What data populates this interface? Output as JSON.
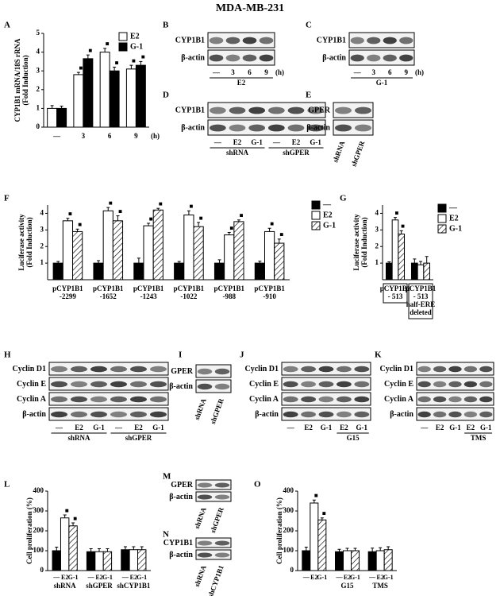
{
  "title": "MDA-MB-231",
  "chart_data": [
    {
      "type": "bar",
      "label": "A",
      "ylabel": [
        "CYP1B1 mRNA/18S rRNA",
        "(Fold Induction)"
      ],
      "xlabel": "(h)",
      "categories": [
        "—",
        "3",
        "6",
        "9"
      ],
      "series": [
        {
          "name": "E2",
          "color": "#ffffff",
          "values": [
            1,
            2.8,
            4,
            3.1
          ],
          "errors": [
            0.15,
            0.12,
            0.2,
            0.2
          ],
          "marks": [
            null,
            "■",
            "■",
            "■"
          ]
        },
        {
          "name": "G-1",
          "color": "#000000",
          "values": [
            1,
            3.65,
            3.0,
            3.3
          ],
          "errors": [
            0.12,
            0.2,
            0.2,
            0.2
          ],
          "marks": [
            null,
            "■",
            "■",
            "■"
          ]
        }
      ],
      "ylim": [
        0,
        5
      ],
      "yticks": [
        0,
        1,
        2,
        3,
        4,
        5
      ],
      "legend": "upper right"
    },
    {
      "type": "bar",
      "label": "F",
      "ylabel": [
        "Luciferase activity",
        "(Fold Induction)"
      ],
      "categories": [
        [
          "pCYP1B1",
          "-2299"
        ],
        [
          "pCYP1B1",
          "-1652"
        ],
        [
          "pCYP1B1",
          "-1243"
        ],
        [
          "pCYP1B1",
          "-1022"
        ],
        [
          "pCYP1B1",
          "-988"
        ],
        [
          "pCYP1B1",
          "-910"
        ]
      ],
      "series": [
        {
          "name": "—",
          "color": "#000000",
          "values": [
            1,
            1,
            1,
            1,
            1,
            1
          ],
          "errors": [
            0.1,
            0.15,
            0.3,
            0.1,
            0.2,
            0.12
          ]
        },
        {
          "name": "E2",
          "color": "#ffffff",
          "values": [
            3.55,
            4.15,
            3.25,
            3.9,
            2.7,
            2.9
          ],
          "errors": [
            0.15,
            0.2,
            0.15,
            0.25,
            0.15,
            0.2
          ],
          "marks": [
            "■",
            "■",
            "■",
            "■",
            "■",
            "■"
          ]
        },
        {
          "name": "G-1",
          "color": "#ffffff",
          "pattern": "hatch",
          "values": [
            2.9,
            3.55,
            4.2,
            3.2,
            3.5,
            2.2
          ],
          "errors": [
            0.15,
            0.3,
            0.1,
            0.25,
            0.1,
            0.25
          ],
          "marks": [
            "■",
            "■",
            "■",
            "■",
            "■",
            "■"
          ]
        }
      ],
      "ylim": [
        0,
        4.5
      ],
      "yticks": [
        1,
        2,
        3,
        4
      ],
      "legend": "right"
    },
    {
      "type": "bar",
      "label": "G",
      "ylabel": [
        "Luciferase activity",
        "(Fold Induction)"
      ],
      "category_boxes": true,
      "categories": [
        [
          "pCYP1B1",
          "- 513"
        ],
        [
          "pCYP1B1",
          "- 513",
          "half-ERE",
          "deleted"
        ]
      ],
      "series": [
        {
          "name": "—",
          "color": "#000000",
          "values": [
            1,
            1
          ],
          "errors": [
            0.08,
            0.25
          ]
        },
        {
          "name": "E2",
          "color": "#ffffff",
          "values": [
            3.6,
            0.9
          ],
          "errors": [
            0.15,
            0.2
          ],
          "marks": [
            "■",
            null
          ]
        },
        {
          "name": "G-1",
          "color": "#ffffff",
          "pattern": "hatch",
          "values": [
            2.75,
            1.0
          ],
          "errors": [
            0.2,
            0.4
          ],
          "marks": [
            "■",
            null
          ]
        }
      ],
      "ylim": [
        0,
        4.5
      ],
      "yticks": [
        1,
        2,
        3,
        4
      ],
      "legend": "right"
    },
    {
      "type": "bar",
      "label": "L",
      "ylabel": [
        "Cell proliferation (%)"
      ],
      "series_under_bars": true,
      "categories": [
        "shRNA",
        "shGPER",
        "shCYP1B1"
      ],
      "series": [
        {
          "name": "—",
          "color": "#000000",
          "values": [
            100,
            95,
            105
          ],
          "errors": [
            18,
            15,
            15
          ]
        },
        {
          "name": "E2",
          "color": "#ffffff",
          "values": [
            265,
            95,
            105
          ],
          "errors": [
            15,
            15,
            15
          ],
          "marks": [
            "■",
            null,
            null
          ]
        },
        {
          "name": "G-1",
          "color": "#ffffff",
          "pattern": "hatch",
          "values": [
            225,
            95,
            105
          ],
          "errors": [
            15,
            15,
            15
          ],
          "marks": [
            "■",
            null,
            null
          ]
        }
      ],
      "ylim": [
        0,
        400
      ],
      "yticks": [
        0,
        100,
        200,
        300,
        400
      ]
    },
    {
      "type": "bar",
      "label": "O",
      "ylabel": [
        "Cell proliferation (%)"
      ],
      "series_under_bars": true,
      "categories": [
        null,
        "G15",
        "TMS"
      ],
      "series": [
        {
          "name": "—",
          "color": "#000000",
          "values": [
            100,
            95,
            95
          ],
          "errors": [
            18,
            12,
            18
          ]
        },
        {
          "name": "E2",
          "color": "#ffffff",
          "values": [
            340,
            100,
            100
          ],
          "errors": [
            15,
            12,
            15
          ],
          "marks": [
            "■",
            null,
            null
          ]
        },
        {
          "name": "G-1",
          "color": "#ffffff",
          "pattern": "hatch",
          "values": [
            255,
            100,
            105
          ],
          "errors": [
            10,
            12,
            15
          ],
          "marks": [
            "■",
            null,
            null
          ]
        }
      ],
      "ylim": [
        0,
        400
      ],
      "yticks": [
        0,
        100,
        200,
        300,
        400
      ]
    }
  ],
  "blots": [
    {
      "label": "B",
      "rows": [
        "CYP1B1",
        "β-actin"
      ],
      "lanes": [
        "—",
        "3",
        "6",
        "9"
      ],
      "unit": "(h)",
      "groups": [
        "E2"
      ]
    },
    {
      "label": "C",
      "rows": [
        "CYP1B1",
        "β-actin"
      ],
      "lanes": [
        "—",
        "3",
        "6",
        "9"
      ],
      "unit": "(h)",
      "groups": [
        "G-1"
      ]
    },
    {
      "label": "D",
      "rows": [
        "CYP1B1",
        "β-actin"
      ],
      "lanes": [
        "—",
        "E2",
        "G-1",
        "—",
        "E2",
        "G-1"
      ],
      "groups": [
        "shRNA",
        "shGPER"
      ]
    },
    {
      "label": "E",
      "rows": [
        "GPER",
        "β-actin"
      ],
      "lanes": [
        "shRNA",
        "shGPER"
      ],
      "lanes_rotated": true
    },
    {
      "label": "H",
      "rows": [
        "Cyclin D1",
        "Cyclin E",
        "Cyclin A",
        "β-actin"
      ],
      "lanes": [
        "—",
        "E2",
        "G-1",
        "—",
        "E2",
        "G-1"
      ],
      "groups": [
        "shRNA",
        "shGPER"
      ]
    },
    {
      "label": "I",
      "rows": [
        "GPER",
        "β-actin"
      ],
      "lanes": [
        "shRNA",
        "shGPER"
      ],
      "lanes_rotated": true
    },
    {
      "label": "J",
      "rows": [
        "Cyclin D1",
        "Cyclin E",
        "Cyclin A",
        "β-actin"
      ],
      "lanes": [
        "—",
        "E2",
        "G-1",
        "E2",
        "G-1"
      ],
      "groups": [
        "G15"
      ]
    },
    {
      "label": "K",
      "rows": [
        "Cyclin D1",
        "Cyclin E",
        "Cyclin A",
        "β-actin"
      ],
      "lanes": [
        "—",
        "E2",
        "G-1",
        "E2",
        "G-1"
      ],
      "groups": [
        "TMS"
      ]
    },
    {
      "label": "M",
      "rows": [
        "GPER",
        "β-actin"
      ],
      "lanes": [
        "shRNA",
        "shGPER"
      ],
      "lanes_rotated": true
    },
    {
      "label": "N",
      "rows": [
        "CYP1B1",
        "β-actin"
      ],
      "lanes": [
        "shRNA",
        "shCYP1B1"
      ],
      "lanes_rotated": true
    }
  ]
}
